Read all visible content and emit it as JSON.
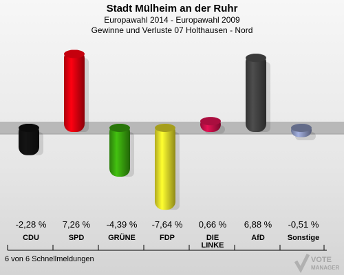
{
  "title": "Stadt Mülheim an der Ruhr",
  "subtitle1": "Europawahl 2014 - Europawahl 2009",
  "subtitle2": "Gewinne und Verluste 07 Holthausen - Nord",
  "footer": "6 von 6 Schnellmeldungen",
  "logo_text": "VOTE MANAGER",
  "chart_data": {
    "type": "bar",
    "title": "Stadt Mülheim an der Ruhr",
    "categories": [
      "CDU",
      "SPD",
      "GRÜNE",
      "FDP",
      "DIE LINKE",
      "AfD",
      "Sonstige"
    ],
    "category_lines": [
      [
        "CDU"
      ],
      [
        "SPD"
      ],
      [
        "GRÜNE"
      ],
      [
        "FDP"
      ],
      [
        "DIE",
        "LINKE"
      ],
      [
        "AfD"
      ],
      [
        "Sonstige"
      ]
    ],
    "values": [
      -2.28,
      7.26,
      -4.39,
      -7.64,
      0.66,
      6.88,
      -0.51
    ],
    "value_labels": [
      "-2,28 %",
      "7,26 %",
      "-4,39 %",
      "-7,64 %",
      "0,66 %",
      "6,88 %",
      "-0,51 %"
    ],
    "colors": [
      "#111111",
      "#e8000f",
      "#3aa80e",
      "#ece22a",
      "#c8104a",
      "#444444",
      "#8f9ac4"
    ],
    "ylim": [
      -8,
      8
    ]
  }
}
